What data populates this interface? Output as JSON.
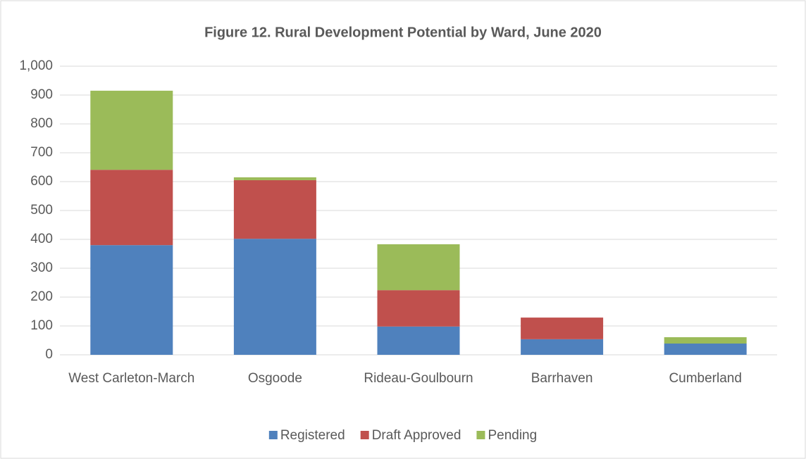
{
  "chart_data": {
    "type": "stacked_bar",
    "title": "Figure 12. Rural Development Potential by Ward, June 2020",
    "categories": [
      "West Carleton-March",
      "Osgoode",
      "Rideau-Goulbourn",
      "Barrhaven",
      "Cumberland"
    ],
    "series": [
      {
        "name": "Registered",
        "color": "#4f81bd",
        "values": [
          380,
          402,
          98,
          54,
          39
        ]
      },
      {
        "name": "Draft Approved",
        "color": "#c0504d",
        "values": [
          261,
          203,
          126,
          75,
          0
        ]
      },
      {
        "name": "Pending",
        "color": "#9bbb59",
        "values": [
          274,
          10,
          159,
          0,
          22
        ]
      }
    ],
    "ylim": [
      0,
      1000
    ],
    "yticks": [
      0,
      100,
      200,
      300,
      400,
      500,
      600,
      700,
      800,
      900,
      {
        "value": 1000,
        "label": "1,000"
      }
    ],
    "grid": true,
    "legend": "bottom"
  }
}
